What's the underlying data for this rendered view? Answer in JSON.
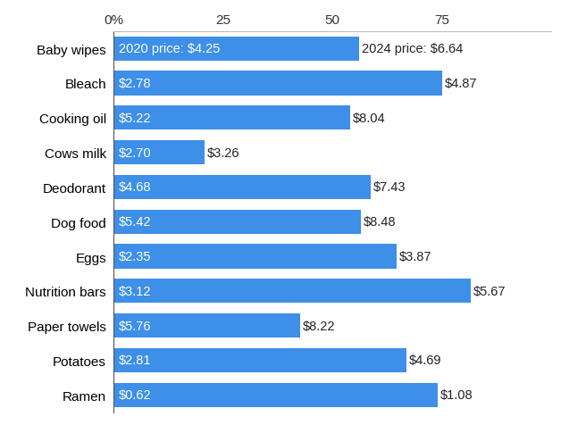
{
  "chart_data": {
    "type": "bar",
    "orientation": "horizontal",
    "color": "#3d8fe8",
    "grid": false,
    "categories": [
      "Baby wipes",
      "Bleach",
      "Cooking oil",
      "Cows milk",
      "Deodorant",
      "Dog food",
      "Eggs",
      "Nutrition bars",
      "Paper towels",
      "Potatoes",
      "Ramen"
    ],
    "values": [
      56.2,
      75.2,
      54.0,
      20.7,
      58.8,
      56.5,
      64.7,
      81.7,
      42.7,
      66.9,
      74.2
    ],
    "price_2020_labels": [
      "2020 price: $4.25",
      "$2.78",
      "$5.22",
      "$2.70",
      "$4.68",
      "$5.42",
      "$2.35",
      "$3.12",
      "$5.76",
      "$2.81",
      "$0.62"
    ],
    "price_2024_labels": [
      "2024 price: $6.64",
      "$4.87",
      "$8.04",
      "$3.26",
      "$7.43",
      "$8.48",
      "$3.87",
      "$5.67",
      "$8.22",
      "$4.69",
      "$1.08"
    ],
    "xlim": [
      0,
      100
    ],
    "xticks": [
      {
        "value": 0,
        "label": "0%"
      },
      25,
      50,
      75
    ]
  }
}
